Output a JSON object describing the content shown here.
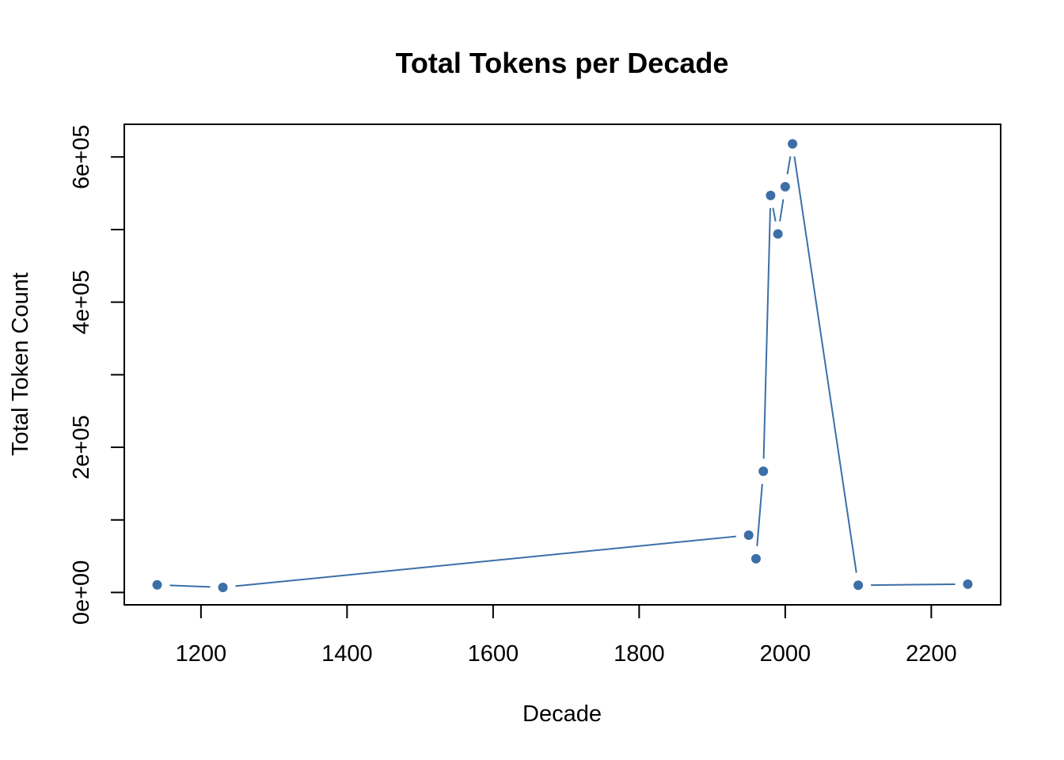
{
  "chart_data": {
    "type": "line",
    "title": "Total Tokens per Decade",
    "xlabel": "Decade",
    "ylabel": "Total Token Count",
    "x_ticks": [
      1200,
      1400,
      1600,
      1800,
      2000,
      2200
    ],
    "x_tick_labels": [
      "1200",
      "1400",
      "1600",
      "1800",
      "2000",
      "2200"
    ],
    "y_ticks": [
      0,
      100000,
      200000,
      300000,
      400000,
      500000,
      600000
    ],
    "y_tick_labels": [
      "0e+00",
      "",
      "2e+05",
      "",
      "4e+05",
      "",
      "6e+05"
    ],
    "xlim": [
      1095,
      2295
    ],
    "ylim": [
      -17000,
      645000
    ],
    "grid": false,
    "series": [
      {
        "color": "#3c6fa8",
        "marker": "circle",
        "line_style": "both-with-gaps",
        "x": [
          1140,
          1230,
          1950,
          1960,
          1970,
          1980,
          1990,
          2000,
          2010,
          2100,
          2250
        ],
        "y": [
          10500,
          7000,
          79000,
          46500,
          167000,
          547000,
          494000,
          559000,
          618000,
          10000,
          11500
        ]
      }
    ]
  }
}
